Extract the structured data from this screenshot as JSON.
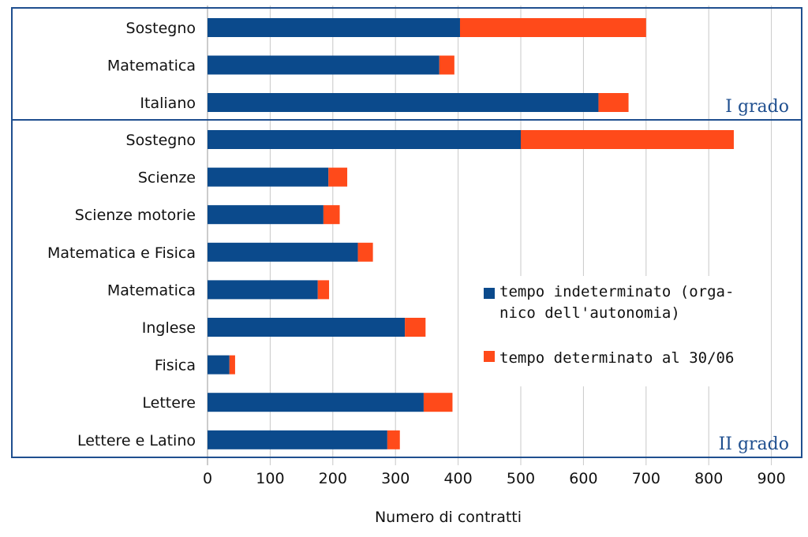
{
  "chart_data": {
    "type": "bar",
    "orientation": "horizontal",
    "stacked": true,
    "xlabel": "Numero di contratti",
    "xlim": [
      0,
      950
    ],
    "xticks": [
      0,
      100,
      200,
      300,
      400,
      500,
      600,
      700,
      800,
      900
    ],
    "grid": true,
    "legend_position": "center-right",
    "colors": {
      "series1": "#0b4a8c",
      "series2": "#ff4a1a",
      "frame": "#1f4f8f",
      "group_label": "#1f4f8f"
    },
    "legend": {
      "items": [
        {
          "lines": [
            "tempo indeterminato (orga-",
            "nico dell'autonomia)"
          ]
        },
        {
          "lines": [
            "tempo determinato al 30/06"
          ]
        }
      ]
    },
    "groups": [
      {
        "label": "I grado",
        "categories": [
          "Sostegno",
          "Matematica",
          "Italiano"
        ],
        "series": [
          {
            "name": "tempo indeterminato (organico dell'autonomia)",
            "values": [
              403,
              370,
              624
            ]
          },
          {
            "name": "tempo determinato al 30/06",
            "values": [
              297,
              24,
              48
            ]
          }
        ]
      },
      {
        "label": "II grado",
        "categories": [
          "Sostegno",
          "Scienze",
          "Scienze motorie",
          "Matematica e Fisica",
          "Matematica",
          "Inglese",
          "Fisica",
          "Lettere",
          "Lettere e Latino"
        ],
        "series": [
          {
            "name": "tempo indeterminato (organico dell'autonomia)",
            "values": [
              500,
              193,
              185,
              240,
              176,
              315,
              35,
              345,
              287
            ]
          },
          {
            "name": "tempo determinato al 30/06",
            "values": [
              340,
              30,
              26,
              24,
              18,
              33,
              9,
              46,
              20
            ]
          }
        ]
      }
    ]
  }
}
